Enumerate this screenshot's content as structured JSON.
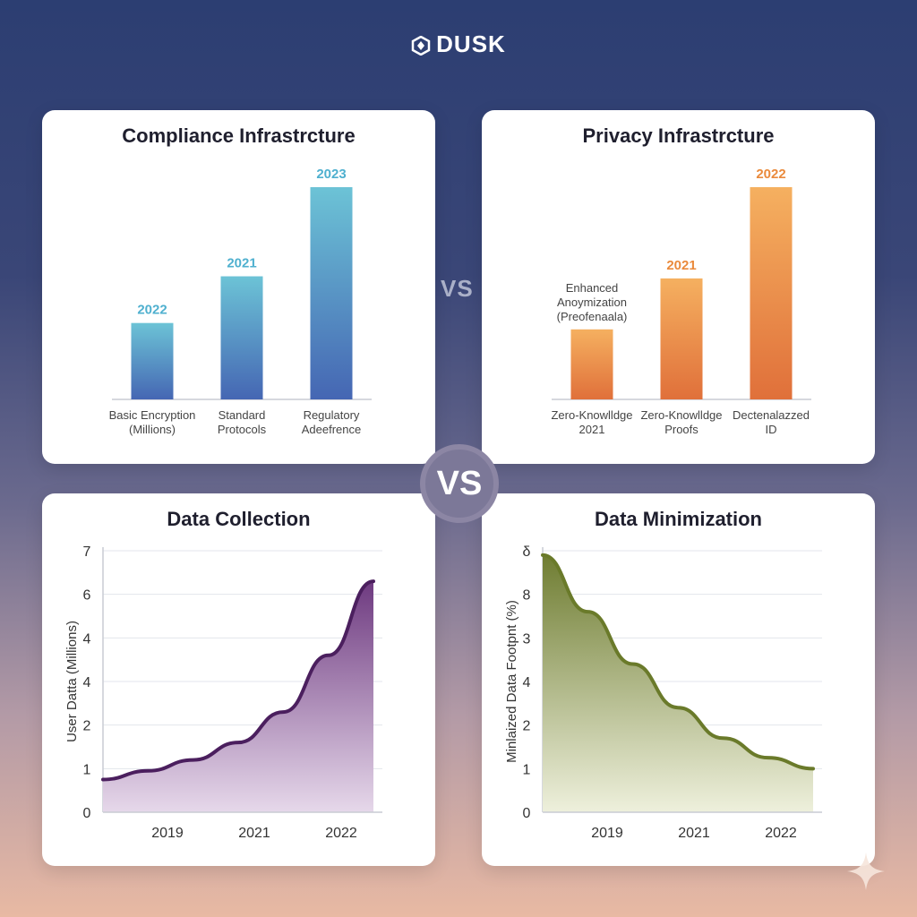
{
  "brand": {
    "name": "DUSK"
  },
  "vs_small": "VS",
  "vs_badge": "VS",
  "chart_data": [
    {
      "type": "bar",
      "title": "Compliance Infrastrcture",
      "categories": [
        "Basic Encryption\n(Millions)",
        "Standard\nProtocols",
        "Regulatory\nAdeefrence"
      ],
      "values": [
        36,
        58,
        100
      ],
      "data_labels": [
        "2022",
        "2021",
        "2023"
      ],
      "ylim": [
        0,
        100
      ],
      "colors": {
        "top": "#6cc3d6",
        "bottom": "#4566b3",
        "label": "#4fb0cf"
      }
    },
    {
      "type": "bar",
      "title": "Privacy Infrastrcture",
      "categories": [
        "Zero-Knowlldge\n2021",
        "Zero-Knowlldge\nProofs",
        "Dectenalazzed\nID"
      ],
      "values": [
        33,
        57,
        100
      ],
      "data_labels": [
        "Enhanced\nAnoymization\n(Preofenaala)",
        "2021",
        "2022"
      ],
      "ylim": [
        0,
        100
      ],
      "colors": {
        "top": "#f5b060",
        "bottom": "#e0703a",
        "label": "#ea8a3c"
      }
    },
    {
      "type": "area",
      "title": "Data Collection",
      "ylabel": "User Datta (Millions)",
      "xlabel": "",
      "x_ticks": [
        "2019",
        "2021",
        "2022"
      ],
      "y_ticks": [
        "0",
        "1",
        "2",
        "4",
        "4",
        "6",
        "7"
      ],
      "x": [
        0,
        1,
        2,
        3,
        4,
        5,
        6
      ],
      "y": [
        0.75,
        0.95,
        1.2,
        1.6,
        2.3,
        3.6,
        5.3
      ],
      "ylim": [
        0,
        6
      ],
      "colors": {
        "line": "#4b1f5e",
        "fill_top": "#6e3a80",
        "fill_bottom": "#e6d8ea"
      }
    },
    {
      "type": "area",
      "title": "Data Minimization",
      "ylabel": "Minlaized Data Footpnt (%)",
      "xlabel": "",
      "x_ticks": [
        "2019",
        "2021",
        "2022"
      ],
      "y_ticks": [
        "0",
        "1",
        "2",
        "4",
        "3",
        "8",
        "δ"
      ],
      "x": [
        0,
        1,
        2,
        3,
        4,
        5,
        6
      ],
      "y": [
        5.9,
        4.6,
        3.4,
        2.4,
        1.7,
        1.25,
        1.0
      ],
      "ylim": [
        0,
        6
      ],
      "colors": {
        "line": "#6a7a2a",
        "fill_top": "#6f7d32",
        "fill_bottom": "#eef0dc"
      }
    }
  ]
}
